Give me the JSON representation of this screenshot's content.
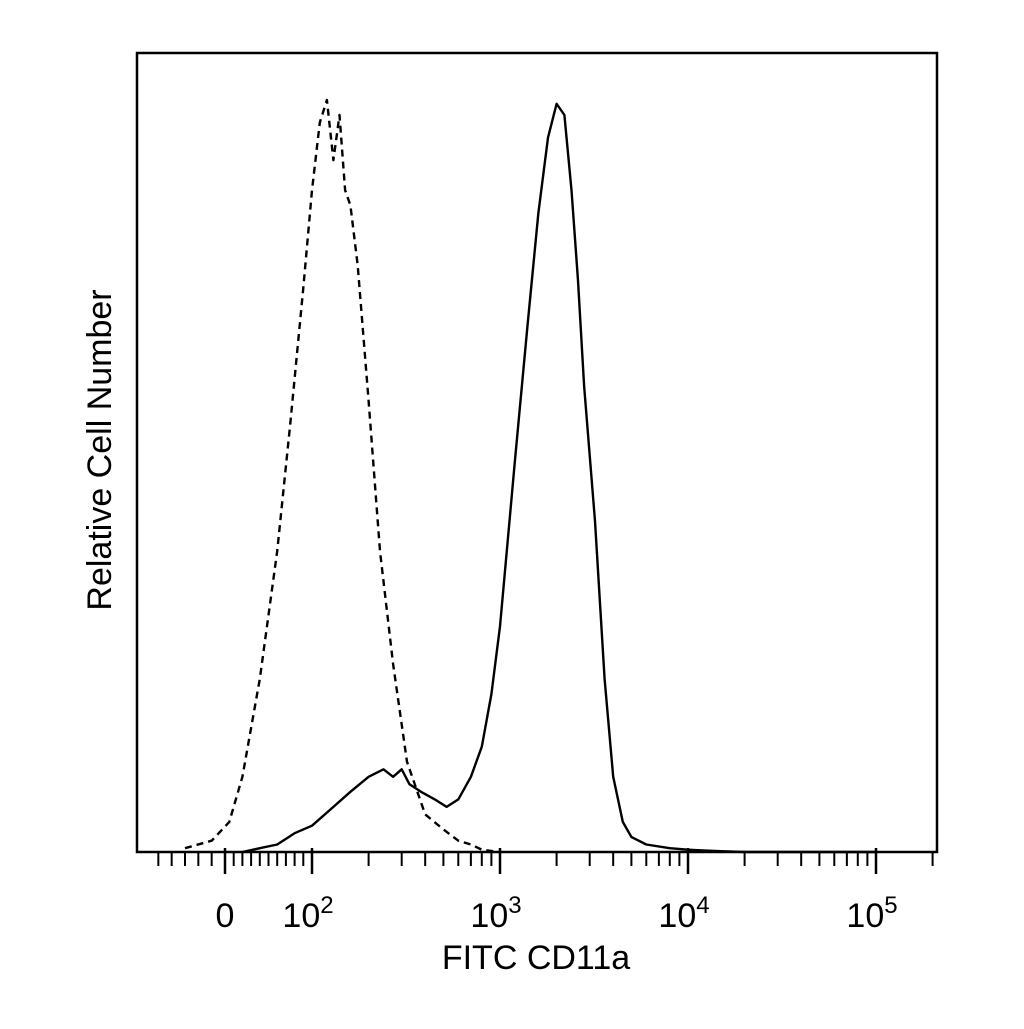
{
  "chart_data": {
    "type": "line",
    "title": "",
    "xlabel": "FITC CD11a",
    "ylabel": "Relative Cell Number",
    "x_scale": "biexponential",
    "xlim": [
      -60,
      200000
    ],
    "ylim": [
      0,
      100
    ],
    "grid": false,
    "x_ticks": [
      {
        "value": 0,
        "base": "0",
        "exp": ""
      },
      {
        "value": 100,
        "base": "10",
        "exp": "2"
      },
      {
        "value": 1000,
        "base": "10",
        "exp": "3"
      },
      {
        "value": 10000,
        "base": "10",
        "exp": "4"
      },
      {
        "value": 100000,
        "base": "10",
        "exp": "5"
      }
    ],
    "series": [
      {
        "style": "dashed",
        "x": [
          -30,
          -10,
          5,
          20,
          40,
          60,
          75,
          90,
          100,
          110,
          120,
          130,
          140,
          150,
          160,
          175,
          200,
          230,
          270,
          320,
          400,
          500,
          600,
          700,
          800,
          1000
        ],
        "y": [
          0.5,
          1.5,
          4,
          10,
          23,
          40,
          57,
          75,
          88,
          97,
          100,
          92,
          98,
          88,
          86,
          78,
          60,
          40,
          25,
          12,
          5,
          3,
          1.5,
          1,
          0.3,
          0
        ]
      },
      {
        "style": "solid",
        "x": [
          20,
          40,
          60,
          80,
          100,
          130,
          160,
          200,
          240,
          270,
          300,
          330,
          380,
          450,
          520,
          600,
          700,
          800,
          900,
          1000,
          1200,
          1400,
          1600,
          1800,
          2000,
          2200,
          2400,
          2600,
          2800,
          3200,
          3600,
          4000,
          4500,
          5000,
          6000,
          8000,
          10000,
          12000,
          15000,
          20000,
          50000,
          100000
        ],
        "y": [
          0,
          0.5,
          1,
          2.5,
          3.5,
          6,
          8,
          10,
          11,
          10,
          11,
          9,
          8,
          7,
          6,
          7,
          10,
          14,
          21,
          30,
          52,
          70,
          85,
          95,
          99.5,
          98,
          88,
          76,
          62,
          44,
          23,
          10,
          4,
          2,
          1,
          0.5,
          0.3,
          0.2,
          0.1,
          0,
          0,
          0
        ]
      }
    ]
  }
}
